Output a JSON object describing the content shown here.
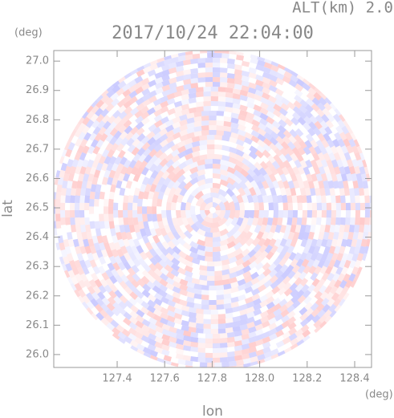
{
  "chart_data": {
    "type": "radar-ppi",
    "title": "2017/10/24 22:04:00",
    "subtitle": "ALT(km) 2.0",
    "x_label": "lon",
    "y_label": "lat",
    "x_unit": "(deg)",
    "y_unit": "(deg)",
    "xlim": [
      127.133,
      128.471
    ],
    "ylim": [
      25.956,
      27.036
    ],
    "xticks": [
      127.4,
      127.6,
      127.8,
      {
        "value": 128,
        "label": "128.0"
      },
      128.2,
      128.4
    ],
    "yticks": [
      {
        "value": 26,
        "label": "26.0"
      },
      26.1,
      26.2,
      26.3,
      26.4,
      26.5,
      26.6,
      26.7,
      26.8,
      26.9,
      {
        "value": 27,
        "label": "27.0"
      }
    ]
  }
}
